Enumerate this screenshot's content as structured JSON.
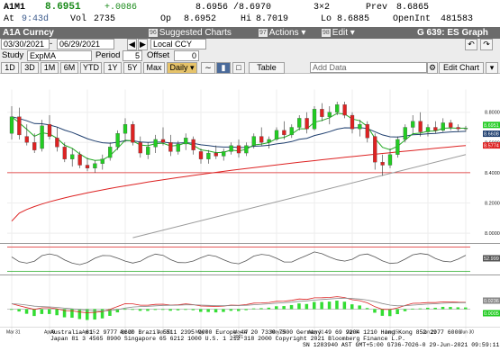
{
  "quote": {
    "ticker": "A1M1",
    "last": "8.6951",
    "change": "+.0086",
    "time_label": "At",
    "time": "9:43d",
    "vol_label": "Vol",
    "vol": "2735",
    "bid_ask": "8.6956 /8.6970",
    "size": "3×2",
    "prev_label": "Prev",
    "prev": "8.6865",
    "open_label": "Op",
    "open": "8.6952",
    "high_label": "Hi",
    "high": "8.7019",
    "low_label": "Lo",
    "low": "8.6885",
    "oi_label": "OpenInt",
    "oi": "481583"
  },
  "titlebar": {
    "security": "A1A Curncy",
    "suggested": {
      "num": "96",
      "label": "Suggested Charts"
    },
    "actions": {
      "num": "97",
      "label": "Actions ▾"
    },
    "edit": {
      "num": "98",
      "label": "Edit ▾"
    },
    "function": "G 639: ES Graph"
  },
  "controls": {
    "start_date": "03/30/2021",
    "end_date": "06/29/2021",
    "currency": "Local CCY",
    "study_label": "Study",
    "study": "ExpMA",
    "period_label": "Period",
    "period": "5",
    "offset_label": "Offset",
    "offset": "0",
    "ranges": [
      "1D",
      "3D",
      "1M",
      "6M",
      "YTD",
      "1Y",
      "5Y",
      "Max"
    ],
    "frequency": "Daily ▾",
    "table_label": "Table",
    "add_data_placeholder": "Add Data",
    "edit_chart": "Edit Chart"
  },
  "chart_data": [
    {
      "type": "candlestick",
      "ylim": [
        7.95,
        8.95
      ],
      "y_ticks": [
        "8.8000",
        "8.6000",
        "8.4000",
        "8.2000",
        "8.0000"
      ],
      "price_labels": {
        "last": "8.6951",
        "ema_fast": "8.6608",
        "ema_slow": "8.5774"
      },
      "x_ticks": [
        "Mar 31",
        "Apr 8",
        "Apr 15",
        "Apr 22",
        "Apr 30",
        "May 7",
        "May 17",
        "May 24",
        "May 31",
        "Jun 8",
        "Jun 15",
        "Jun 22",
        "Jun 30"
      ],
      "x_tick_year": "2021",
      "colors": {
        "up": "#22cc22",
        "down": "#dd2222",
        "ema_fast": "#22aa22",
        "ema_slow": "#1f3f6f",
        "ma_long": "#dd2222",
        "trend": "#9a9a9a",
        "hline": "#dd2222"
      },
      "candles": [
        {
          "o": 8.66,
          "h": 8.84,
          "l": 8.62,
          "c": 8.77
        },
        {
          "o": 8.77,
          "h": 8.83,
          "l": 8.62,
          "c": 8.65
        },
        {
          "o": 8.64,
          "h": 8.72,
          "l": 8.58,
          "c": 8.6
        },
        {
          "o": 8.6,
          "h": 8.66,
          "l": 8.53,
          "c": 8.55
        },
        {
          "o": 8.56,
          "h": 8.75,
          "l": 8.54,
          "c": 8.71
        },
        {
          "o": 8.72,
          "h": 8.78,
          "l": 8.62,
          "c": 8.64
        },
        {
          "o": 8.63,
          "h": 8.7,
          "l": 8.54,
          "c": 8.57
        },
        {
          "o": 8.57,
          "h": 8.6,
          "l": 8.47,
          "c": 8.49
        },
        {
          "o": 8.49,
          "h": 8.56,
          "l": 8.44,
          "c": 8.52
        },
        {
          "o": 8.52,
          "h": 8.54,
          "l": 8.43,
          "c": 8.45
        },
        {
          "o": 8.45,
          "h": 8.5,
          "l": 8.41,
          "c": 8.43
        },
        {
          "o": 8.43,
          "h": 8.48,
          "l": 8.4,
          "c": 8.46
        },
        {
          "o": 8.46,
          "h": 8.52,
          "l": 8.42,
          "c": 8.49
        },
        {
          "o": 8.5,
          "h": 8.6,
          "l": 8.48,
          "c": 8.57
        },
        {
          "o": 8.57,
          "h": 8.68,
          "l": 8.55,
          "c": 8.66
        },
        {
          "o": 8.66,
          "h": 8.76,
          "l": 8.6,
          "c": 8.72
        },
        {
          "o": 8.72,
          "h": 8.74,
          "l": 8.58,
          "c": 8.6
        },
        {
          "o": 8.6,
          "h": 8.64,
          "l": 8.5,
          "c": 8.53
        },
        {
          "o": 8.52,
          "h": 8.6,
          "l": 8.49,
          "c": 8.57
        },
        {
          "o": 8.57,
          "h": 8.65,
          "l": 8.53,
          "c": 8.62
        },
        {
          "o": 8.62,
          "h": 8.7,
          "l": 8.58,
          "c": 8.6
        },
        {
          "o": 8.6,
          "h": 8.65,
          "l": 8.51,
          "c": 8.54
        },
        {
          "o": 8.54,
          "h": 8.61,
          "l": 8.52,
          "c": 8.59
        },
        {
          "o": 8.59,
          "h": 8.66,
          "l": 8.55,
          "c": 8.63
        },
        {
          "o": 8.62,
          "h": 8.64,
          "l": 8.52,
          "c": 8.55
        },
        {
          "o": 8.54,
          "h": 8.56,
          "l": 8.46,
          "c": 8.49
        },
        {
          "o": 8.49,
          "h": 8.55,
          "l": 8.46,
          "c": 8.53
        },
        {
          "o": 8.53,
          "h": 8.58,
          "l": 8.49,
          "c": 8.51
        },
        {
          "o": 8.51,
          "h": 8.56,
          "l": 8.48,
          "c": 8.54
        },
        {
          "o": 8.54,
          "h": 8.6,
          "l": 8.52,
          "c": 8.58
        },
        {
          "o": 8.58,
          "h": 8.62,
          "l": 8.5,
          "c": 8.53
        },
        {
          "o": 8.53,
          "h": 8.6,
          "l": 8.51,
          "c": 8.58
        },
        {
          "o": 8.58,
          "h": 8.66,
          "l": 8.56,
          "c": 8.64
        },
        {
          "o": 8.64,
          "h": 8.7,
          "l": 8.58,
          "c": 8.6
        },
        {
          "o": 8.6,
          "h": 8.64,
          "l": 8.56,
          "c": 8.62
        },
        {
          "o": 8.62,
          "h": 8.7,
          "l": 8.61,
          "c": 8.68
        },
        {
          "o": 8.68,
          "h": 8.74,
          "l": 8.62,
          "c": 8.65
        },
        {
          "o": 8.65,
          "h": 8.72,
          "l": 8.63,
          "c": 8.7
        },
        {
          "o": 8.7,
          "h": 8.78,
          "l": 8.68,
          "c": 8.76
        },
        {
          "o": 8.76,
          "h": 8.8,
          "l": 8.66,
          "c": 8.69
        },
        {
          "o": 8.69,
          "h": 8.84,
          "l": 8.68,
          "c": 8.82
        },
        {
          "o": 8.82,
          "h": 8.86,
          "l": 8.74,
          "c": 8.77
        },
        {
          "o": 8.77,
          "h": 8.84,
          "l": 8.72,
          "c": 8.8
        },
        {
          "o": 8.8,
          "h": 8.87,
          "l": 8.78,
          "c": 8.85
        },
        {
          "o": 8.85,
          "h": 8.87,
          "l": 8.76,
          "c": 8.78
        },
        {
          "o": 8.78,
          "h": 8.8,
          "l": 8.66,
          "c": 8.69
        },
        {
          "o": 8.69,
          "h": 8.75,
          "l": 8.64,
          "c": 8.72
        },
        {
          "o": 8.72,
          "h": 8.74,
          "l": 8.6,
          "c": 8.63
        },
        {
          "o": 8.64,
          "h": 8.66,
          "l": 8.42,
          "c": 8.47
        },
        {
          "o": 8.47,
          "h": 8.52,
          "l": 8.38,
          "c": 8.45
        },
        {
          "o": 8.45,
          "h": 8.56,
          "l": 8.43,
          "c": 8.52
        },
        {
          "o": 8.52,
          "h": 8.64,
          "l": 8.5,
          "c": 8.62
        },
        {
          "o": 8.62,
          "h": 8.72,
          "l": 8.6,
          "c": 8.7
        },
        {
          "o": 8.7,
          "h": 8.78,
          "l": 8.66,
          "c": 8.74
        },
        {
          "o": 8.74,
          "h": 8.8,
          "l": 8.64,
          "c": 8.67
        },
        {
          "o": 8.67,
          "h": 8.72,
          "l": 8.64,
          "c": 8.7
        },
        {
          "o": 8.7,
          "h": 8.74,
          "l": 8.66,
          "c": 8.68
        },
        {
          "o": 8.68,
          "h": 8.76,
          "l": 8.67,
          "c": 8.73
        },
        {
          "o": 8.73,
          "h": 8.75,
          "l": 8.68,
          "c": 8.7
        },
        {
          "o": 8.7,
          "h": 8.72,
          "l": 8.67,
          "c": 8.69
        },
        {
          "o": 8.69,
          "h": 8.71,
          "l": 8.67,
          "c": 8.695
        }
      ]
    },
    {
      "type": "line",
      "name": "oscillator",
      "last_label": "52.999"
    },
    {
      "type": "histogram",
      "name": "macd",
      "last_label_top": "0.0236",
      "last_label_bottom": "0.0005"
    }
  ],
  "footer": {
    "line1": "Australia 61 2 9777 8600 Brazil 5511 2395 9000 Europe 44 20 7330 7500 Germany 49 69 9204 1210 Hong Kong 852 2977 6000",
    "line2": "Japan 81 3 4565 8900        Singapore 65 6212 1000       U.S. 1 212 318 2000        Copyright 2021 Bloomberg Finance L.P.",
    "line3": "SN 1283940 AST  GMT+5:00 G736-7026-0 29-Jun-2021 09:59:11"
  }
}
